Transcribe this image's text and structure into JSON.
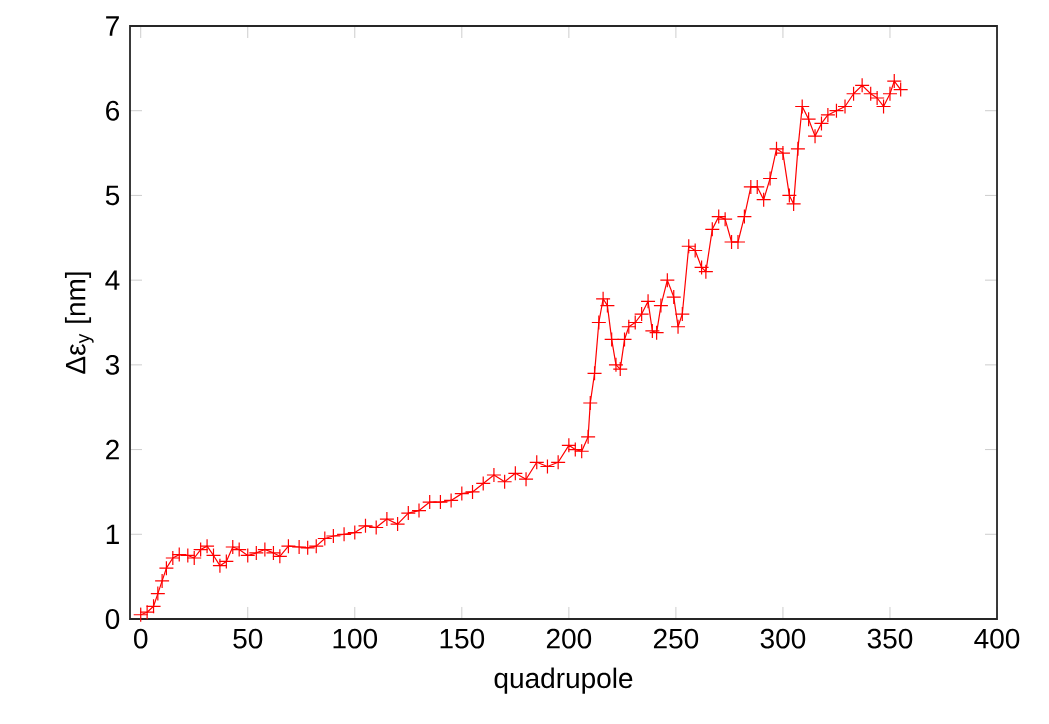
{
  "chart_data": {
    "type": "line",
    "xlabel": "quadrupole",
    "ylabel": "Δε$_{y}$ [nm]",
    "color": "#ff0000",
    "marker": "cross",
    "line_style": "solid",
    "xlim": [
      -5,
      400
    ],
    "ylim": [
      0,
      7
    ],
    "xticks": [
      0,
      50,
      100,
      150,
      200,
      250,
      300,
      350,
      400
    ],
    "yticks": [
      0,
      1,
      2,
      3,
      4,
      5,
      6,
      7
    ],
    "x": [
      0,
      3,
      6,
      8,
      10,
      12,
      15,
      18,
      22,
      25,
      28,
      31,
      34,
      37,
      40,
      43,
      46,
      50,
      54,
      58,
      62,
      65,
      69,
      74,
      78,
      82,
      86,
      90,
      95,
      100,
      105,
      110,
      115,
      120,
      125,
      130,
      135,
      140,
      145,
      150,
      155,
      160,
      165,
      170,
      175,
      180,
      185,
      190,
      195,
      200,
      203,
      206,
      209,
      210,
      212,
      214,
      216,
      218,
      220,
      222,
      224,
      226,
      228,
      231,
      234,
      237,
      239,
      241,
      243,
      246,
      249,
      251,
      253,
      256,
      259,
      262,
      264,
      267,
      270,
      273,
      276,
      279,
      282,
      285,
      288,
      291,
      294,
      297,
      300,
      303,
      305,
      307,
      309,
      312,
      315,
      318,
      321,
      325,
      329,
      333,
      337,
      341,
      344,
      347,
      350,
      352,
      355
    ],
    "values": [
      0.05,
      0.08,
      0.15,
      0.3,
      0.45,
      0.6,
      0.72,
      0.76,
      0.75,
      0.72,
      0.82,
      0.86,
      0.75,
      0.63,
      0.68,
      0.85,
      0.82,
      0.75,
      0.78,
      0.82,
      0.78,
      0.74,
      0.86,
      0.85,
      0.84,
      0.86,
      0.95,
      0.98,
      1.0,
      1.02,
      1.1,
      1.08,
      1.18,
      1.12,
      1.25,
      1.28,
      1.38,
      1.38,
      1.4,
      1.48,
      1.5,
      1.6,
      1.7,
      1.62,
      1.72,
      1.65,
      1.85,
      1.8,
      1.85,
      2.05,
      2.0,
      1.98,
      2.15,
      2.55,
      2.9,
      3.5,
      3.78,
      3.7,
      3.3,
      3.0,
      2.95,
      3.3,
      3.45,
      3.5,
      3.6,
      3.75,
      3.4,
      3.38,
      3.7,
      4.0,
      3.8,
      3.45,
      3.6,
      4.4,
      4.35,
      4.15,
      4.1,
      4.6,
      4.75,
      4.72,
      4.45,
      4.45,
      4.75,
      5.1,
      5.1,
      4.95,
      5.2,
      5.55,
      5.5,
      5.0,
      4.9,
      5.55,
      6.05,
      5.9,
      5.7,
      5.85,
      5.95,
      6.0,
      6.05,
      6.2,
      6.3,
      6.2,
      6.15,
      6.05,
      6.2,
      6.35,
      6.25
    ]
  }
}
